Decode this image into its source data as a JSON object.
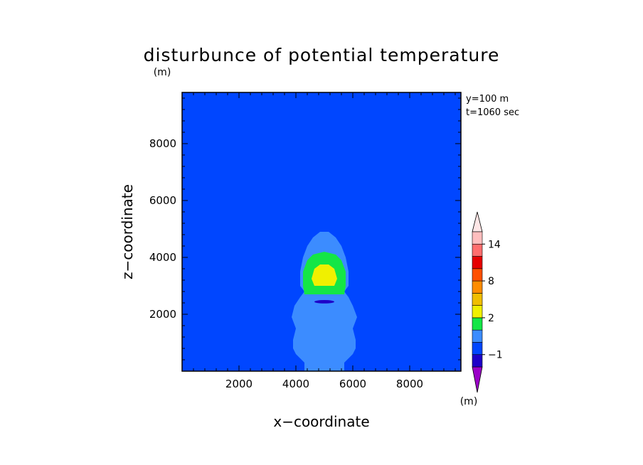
{
  "chart_data": {
    "type": "contour",
    "title": "disturbunce of potential temperature",
    "y_unit": "(m)",
    "xlabel": "x−coordinate",
    "ylabel": "z−coordinate",
    "xlim": [
      0,
      9800
    ],
    "ylim": [
      0,
      9800
    ],
    "x_ticks": [
      "2000",
      "4000",
      "6000",
      "8000"
    ],
    "y_ticks": [
      "2000",
      "4000",
      "6000",
      "8000"
    ],
    "x_tick_values": [
      2000,
      4000,
      6000,
      8000
    ],
    "y_tick_values": [
      2000,
      4000,
      6000,
      8000
    ],
    "annotations": [
      "y=100 m",
      "t=1060 sec"
    ],
    "colorbar": {
      "unit": "(m)",
      "labels": [
        "14",
        "8",
        "2",
        "−1"
      ],
      "label_levels": [
        14,
        8,
        2,
        -1
      ],
      "levels": [
        -2,
        -1,
        0,
        1,
        2,
        4,
        6,
        8,
        10,
        12,
        14,
        16
      ],
      "colors": [
        "#9b00c8",
        "#1e00c8",
        "#0046ff",
        "#3c8cff",
        "#14e646",
        "#f0f000",
        "#f0be00",
        "#ff8c00",
        "#ff5000",
        "#e60000",
        "#ff6e6e",
        "#ffbebe",
        "#ffe6e6"
      ]
    },
    "background_color": "#0046ff",
    "regions": [
      {
        "name": "plume-light-blue",
        "level_range": [
          0,
          1
        ],
        "color": "#3c8cff",
        "outline": [
          [
            4300,
            0
          ],
          [
            5700,
            0
          ],
          [
            5700,
            300
          ],
          [
            6000,
            600
          ],
          [
            6100,
            800
          ],
          [
            6100,
            1100
          ],
          [
            6000,
            1500
          ],
          [
            6150,
            1900
          ],
          [
            6000,
            2300
          ],
          [
            5850,
            2600
          ],
          [
            5700,
            2800
          ],
          [
            5850,
            3000
          ],
          [
            5850,
            3500
          ],
          [
            5750,
            4000
          ],
          [
            5600,
            4400
          ],
          [
            5400,
            4700
          ],
          [
            5150,
            4900
          ],
          [
            4850,
            4900
          ],
          [
            4600,
            4700
          ],
          [
            4400,
            4400
          ],
          [
            4250,
            4000
          ],
          [
            4150,
            3500
          ],
          [
            4150,
            3000
          ],
          [
            4300,
            2800
          ],
          [
            4150,
            2600
          ],
          [
            3950,
            2300
          ],
          [
            3850,
            1900
          ],
          [
            4000,
            1500
          ],
          [
            3900,
            1100
          ],
          [
            3900,
            800
          ],
          [
            4000,
            600
          ],
          [
            4300,
            300
          ]
        ]
      },
      {
        "name": "plume-green",
        "level_range": [
          1,
          2
        ],
        "color": "#14e646",
        "outline": [
          [
            4300,
            2700
          ],
          [
            5700,
            2700
          ],
          [
            5750,
            3000
          ],
          [
            5750,
            3500
          ],
          [
            5600,
            3900
          ],
          [
            5400,
            4100
          ],
          [
            5000,
            4200
          ],
          [
            4600,
            4100
          ],
          [
            4400,
            3900
          ],
          [
            4250,
            3500
          ],
          [
            4250,
            3000
          ]
        ]
      },
      {
        "name": "plume-yellow",
        "level_range": [
          2,
          4
        ],
        "color": "#f0f000",
        "outline": [
          [
            4650,
            3000
          ],
          [
            5350,
            3000
          ],
          [
            5450,
            3250
          ],
          [
            5350,
            3600
          ],
          [
            5150,
            3750
          ],
          [
            4850,
            3750
          ],
          [
            4650,
            3600
          ],
          [
            4550,
            3250
          ]
        ]
      },
      {
        "name": "cold-pocket",
        "level_range": [
          -1,
          0
        ],
        "color": "#1e00c8",
        "ellipse": {
          "cx": 5000,
          "cy": 2440,
          "rx": 350,
          "ry": 60
        }
      }
    ]
  }
}
